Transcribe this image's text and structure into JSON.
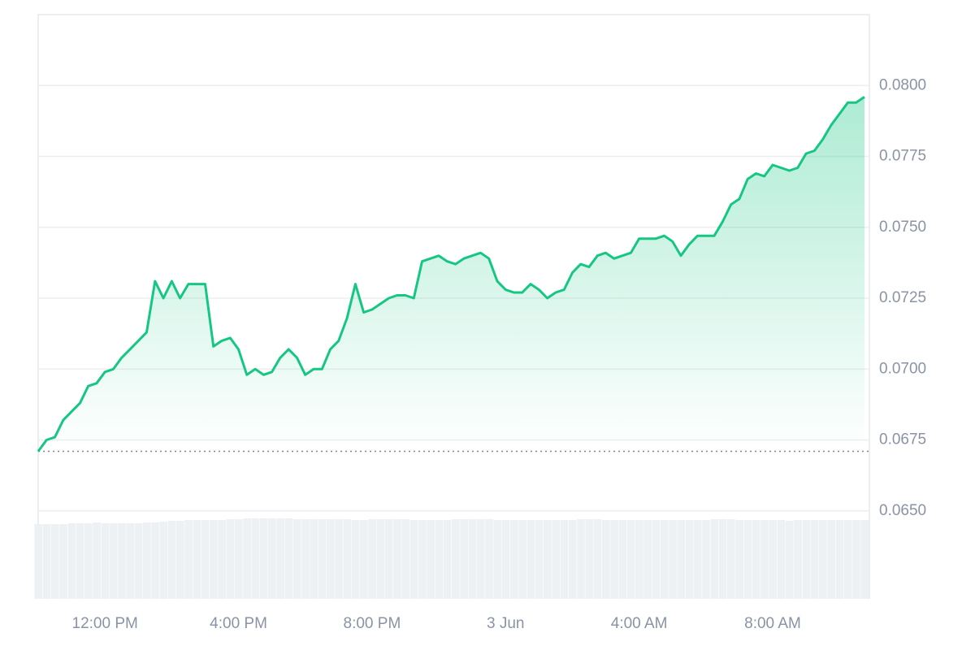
{
  "chart_data": {
    "type": "line",
    "categories": [
      null,
      null,
      null,
      null,
      null,
      null,
      null,
      null,
      "12:00 PM",
      null,
      null,
      null,
      null,
      null,
      null,
      null,
      null,
      null,
      null,
      null,
      null,
      null,
      null,
      null,
      "4:00 PM",
      null,
      null,
      null,
      null,
      null,
      null,
      null,
      null,
      null,
      null,
      null,
      null,
      null,
      null,
      null,
      "8:00 PM",
      null,
      null,
      null,
      null,
      null,
      null,
      null,
      null,
      null,
      null,
      null,
      null,
      null,
      null,
      null,
      "3 Jun",
      null,
      null,
      null,
      null,
      null,
      null,
      null,
      null,
      null,
      null,
      null,
      null,
      null,
      null,
      null,
      "4:00 AM",
      null,
      null,
      null,
      null,
      null,
      null,
      null,
      null,
      null,
      null,
      null,
      null,
      null,
      null,
      null,
      "8:00 AM",
      null,
      null,
      null,
      null,
      null,
      null,
      null,
      null,
      null,
      null,
      null
    ],
    "values": [
      0.0671,
      0.0675,
      0.0676,
      0.0682,
      0.0685,
      0.0688,
      0.0694,
      0.0695,
      0.0699,
      0.07,
      0.0704,
      0.0707,
      0.071,
      0.0713,
      0.0731,
      0.0725,
      0.0731,
      0.0725,
      0.073,
      0.073,
      0.073,
      0.0708,
      0.071,
      0.0711,
      0.0707,
      0.0698,
      0.07,
      0.0698,
      0.0699,
      0.0704,
      0.0707,
      0.0704,
      0.0698,
      0.07,
      0.07,
      0.0707,
      0.071,
      0.0718,
      0.073,
      0.072,
      0.0721,
      0.0723,
      0.0725,
      0.0726,
      0.0726,
      0.0725,
      0.0738,
      0.0739,
      0.074,
      0.0738,
      0.0737,
      0.0739,
      0.074,
      0.0741,
      0.0739,
      0.0731,
      0.0728,
      0.0727,
      0.0727,
      0.073,
      0.0728,
      0.0725,
      0.0727,
      0.0728,
      0.0734,
      0.0737,
      0.0736,
      0.074,
      0.0741,
      0.0739,
      0.074,
      0.0741,
      0.0746,
      0.0746,
      0.0746,
      0.0747,
      0.0745,
      0.074,
      0.0744,
      0.0747,
      0.0747,
      0.0747,
      0.0752,
      0.0758,
      0.076,
      0.0767,
      0.0769,
      0.0768,
      0.0772,
      0.0771,
      0.077,
      0.0771,
      0.0776,
      0.0777,
      0.0781,
      0.0786,
      0.079,
      0.0794,
      0.0794,
      0.0796
    ],
    "color": "#16c784",
    "baseline": 0.0671,
    "ylim": [
      0.0619,
      0.0825
    ],
    "yticks": [
      {
        "value": 0.065,
        "label": "0.0650"
      },
      {
        "value": 0.0675,
        "label": "0.0675"
      },
      {
        "value": 0.07,
        "label": "0.0700"
      },
      {
        "value": 0.0725,
        "label": "0.0725"
      },
      {
        "value": 0.075,
        "label": "0.0750"
      },
      {
        "value": 0.0775,
        "label": "0.0775"
      },
      {
        "value": 0.08,
        "label": "0.0800"
      }
    ],
    "grid": true,
    "volume": {
      "color": "#eef1f4",
      "y2lim": [
        0,
        100
      ],
      "values": [
        92,
        92,
        92,
        92,
        93,
        93,
        93,
        94,
        93,
        93,
        93,
        93,
        93,
        94,
        94,
        95,
        96,
        96,
        97,
        97,
        97,
        97,
        97,
        98,
        98,
        99,
        99,
        99,
        99,
        99,
        99,
        98,
        98,
        98,
        98,
        98,
        98,
        98,
        97,
        97,
        98,
        98,
        98,
        98,
        98,
        97,
        97,
        97,
        97,
        97,
        98,
        98,
        98,
        98,
        98,
        97,
        97,
        97,
        97,
        97,
        97,
        97,
        97,
        97,
        97,
        98,
        98,
        98,
        97,
        97,
        97,
        97,
        97,
        97,
        97,
        97,
        97,
        97,
        97,
        97,
        97,
        98,
        98,
        98,
        97,
        97,
        97,
        97,
        97,
        97,
        96,
        97,
        97,
        97,
        97,
        97,
        97,
        97,
        97,
        97
      ]
    }
  }
}
